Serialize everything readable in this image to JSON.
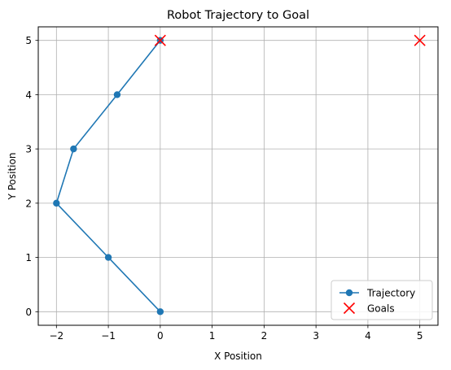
{
  "chart_data": {
    "type": "line",
    "title": "Robot Trajectory to Goal",
    "xlabel": "X Position",
    "ylabel": "Y Position",
    "xlim": [
      -2.35,
      5.35
    ],
    "ylim": [
      -0.25,
      5.25
    ],
    "xticks": [
      -2,
      -1,
      0,
      1,
      2,
      3,
      4,
      5
    ],
    "yticks": [
      0,
      1,
      2,
      3,
      4,
      5
    ],
    "xtick_labels": [
      "−2",
      "−1",
      "0",
      "1",
      "2",
      "3",
      "4",
      "5"
    ],
    "ytick_labels": [
      "0",
      "1",
      "2",
      "3",
      "4",
      "5"
    ],
    "grid": true,
    "legend_position": "lower-right",
    "series": [
      {
        "name": "Trajectory",
        "kind": "line-marker",
        "color": "#1f77b4",
        "marker": "circle",
        "x": [
          0,
          -1,
          -2,
          -1.67,
          -0.83,
          0
        ],
        "y": [
          0,
          1,
          2,
          3,
          4,
          5
        ]
      },
      {
        "name": "Goals",
        "kind": "scatter",
        "color": "#ff0000",
        "marker": "x",
        "x": [
          0,
          5
        ],
        "y": [
          5,
          5
        ]
      }
    ]
  }
}
